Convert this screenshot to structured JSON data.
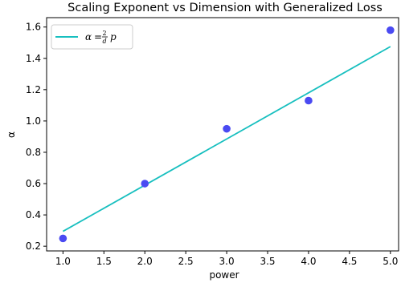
{
  "chart_data": {
    "type": "scatter",
    "title": "Scaling Exponent vs Dimension with Generalized Loss",
    "xlabel": "power",
    "ylabel": "α",
    "xlim": [
      0.8,
      5.1
    ],
    "ylim": [
      0.17,
      1.66
    ],
    "xticks": [
      1.0,
      1.5,
      2.0,
      2.5,
      3.0,
      3.5,
      4.0,
      4.5,
      5.0
    ],
    "xtick_labels": [
      "1.0",
      "1.5",
      "2.0",
      "2.5",
      "3.0",
      "3.5",
      "4.0",
      "4.5",
      "5.0"
    ],
    "yticks": [
      0.2,
      0.4,
      0.6,
      0.8,
      1.0,
      1.2,
      1.4,
      1.6
    ],
    "ytick_labels": [
      "0.2",
      "0.4",
      "0.6",
      "0.8",
      "1.0",
      "1.2",
      "1.4",
      "1.6"
    ],
    "grid": false,
    "legend_position": "top-left",
    "series": [
      {
        "kind": "scatter",
        "color": "#4a4af2",
        "x": [
          1,
          2,
          3,
          4,
          5
        ],
        "y": [
          0.25,
          0.6,
          0.95,
          1.13,
          1.58
        ]
      },
      {
        "kind": "line",
        "name": "α = 2/d p",
        "color": "#17bfbf",
        "x": [
          1,
          5
        ],
        "y": [
          0.295,
          1.475
        ]
      }
    ],
    "legend": {
      "alpha": "α",
      "equals": "=",
      "numerator": "2",
      "denominator": "d",
      "suffix": "p"
    }
  }
}
